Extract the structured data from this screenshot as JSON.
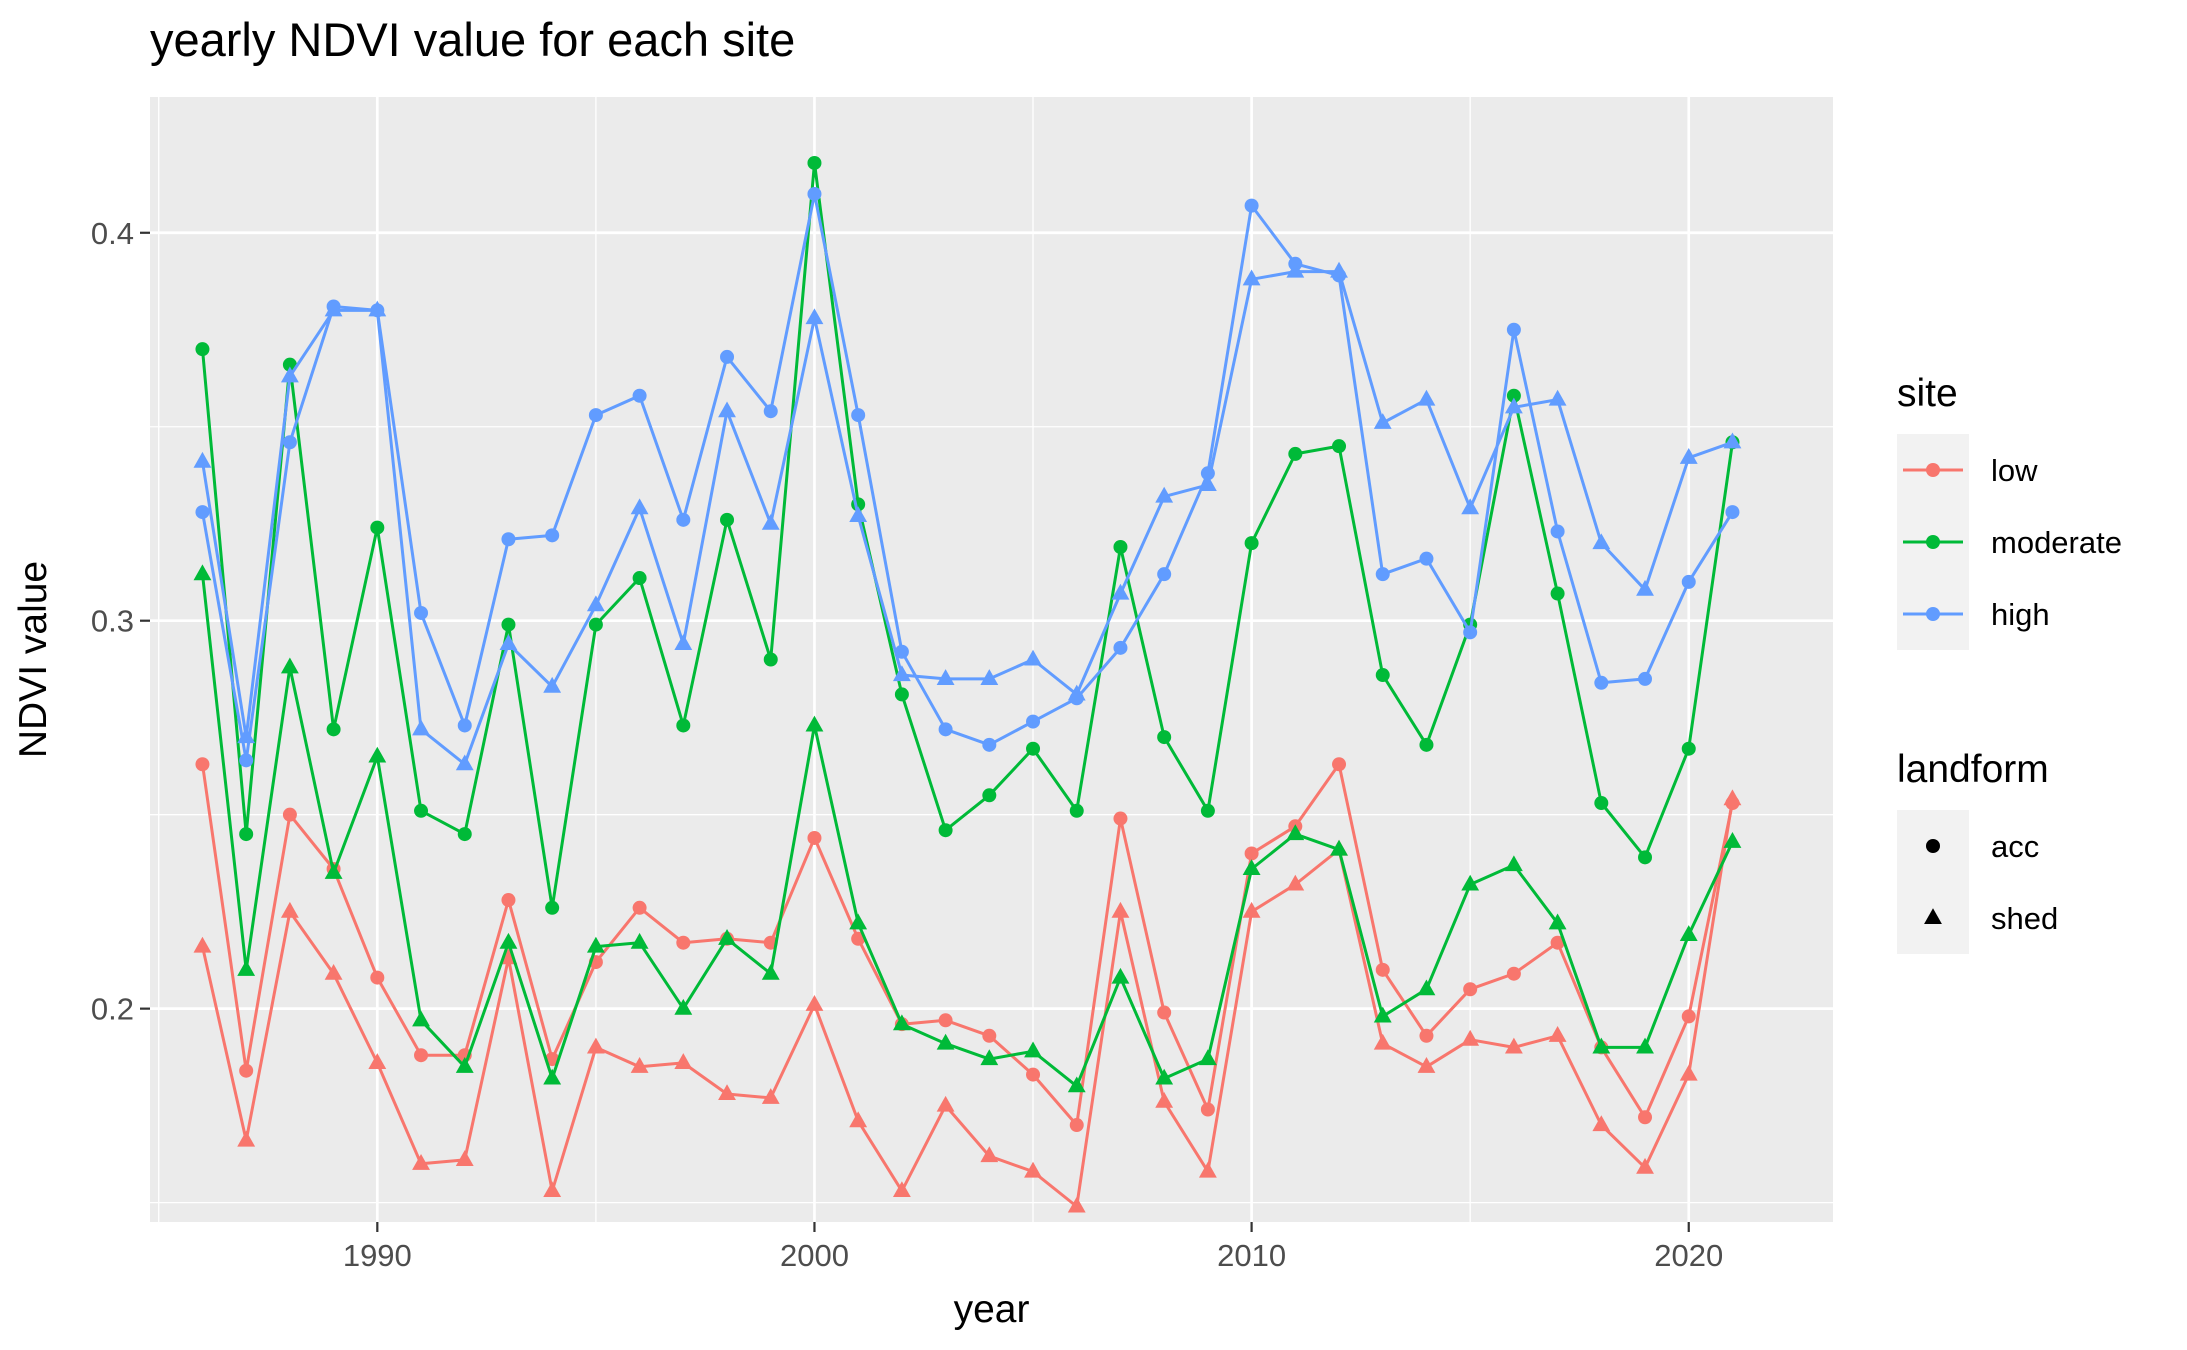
{
  "chart_data": {
    "type": "line",
    "title": "yearly NDVI value for each site",
    "xlabel": "year",
    "ylabel": "NDVI value",
    "xlim": [
      1984.8,
      2023.3
    ],
    "ylim": [
      0.145,
      0.435
    ],
    "x_ticks": [
      1990,
      2000,
      2010,
      2020
    ],
    "y_ticks": [
      0.2,
      0.3,
      0.4
    ],
    "grid": true,
    "legend_position": "right",
    "legends": [
      {
        "title": "site",
        "entries": [
          {
            "label": "low",
            "color": "#F8766D"
          },
          {
            "label": "moderate",
            "color": "#00BA38"
          },
          {
            "label": "high",
            "color": "#619CFF"
          }
        ]
      },
      {
        "title": "landform",
        "entries": [
          {
            "label": "acc",
            "shape": "circle"
          },
          {
            "label": "shed",
            "shape": "triangle"
          }
        ]
      }
    ],
    "x": [
      1986,
      1987,
      1988,
      1989,
      1990,
      1991,
      1992,
      1993,
      1994,
      1995,
      1996,
      1997,
      1998,
      1999,
      2000,
      2001,
      2002,
      2003,
      2004,
      2005,
      2006,
      2007,
      2008,
      2009,
      2010,
      2011,
      2012,
      2013,
      2014,
      2015,
      2016,
      2017,
      2018,
      2019,
      2020,
      2021
    ],
    "series": [
      {
        "site": "low",
        "landform": "acc",
        "color": "#F8766D",
        "shape": "circle",
        "values": [
          0.263,
          0.184,
          0.25,
          0.236,
          0.208,
          0.188,
          0.188,
          0.228,
          0.187,
          0.212,
          0.226,
          0.217,
          0.218,
          0.217,
          0.244,
          0.218,
          0.196,
          0.197,
          0.193,
          0.183,
          0.17,
          0.249,
          0.199,
          0.174,
          0.24,
          0.247,
          0.263,
          0.21,
          0.193,
          0.205,
          0.209,
          0.217,
          0.19,
          0.172,
          0.198,
          0.253
        ]
      },
      {
        "site": "low",
        "landform": "shed",
        "color": "#F8766D",
        "shape": "triangle",
        "values": [
          0.216,
          0.166,
          0.225,
          0.209,
          0.186,
          0.16,
          0.161,
          0.213,
          0.153,
          0.19,
          0.185,
          0.186,
          0.178,
          0.177,
          0.201,
          0.171,
          0.153,
          0.175,
          0.162,
          0.158,
          0.149,
          0.225,
          0.176,
          0.158,
          0.225,
          0.232,
          0.241,
          0.191,
          0.185,
          0.192,
          0.19,
          0.193,
          0.17,
          0.159,
          0.183,
          0.254
        ]
      },
      {
        "site": "moderate",
        "landform": "acc",
        "color": "#00BA38",
        "shape": "circle",
        "values": [
          0.37,
          0.245,
          0.366,
          0.272,
          0.324,
          0.251,
          0.245,
          0.299,
          0.226,
          0.299,
          0.311,
          0.273,
          0.326,
          0.29,
          0.418,
          0.33,
          0.281,
          0.246,
          0.255,
          0.267,
          0.251,
          0.319,
          0.27,
          0.251,
          0.32,
          0.343,
          0.345,
          0.286,
          0.268,
          0.299,
          0.358,
          0.307,
          0.253,
          0.239,
          0.267,
          0.346
        ]
      },
      {
        "site": "moderate",
        "landform": "shed",
        "color": "#00BA38",
        "shape": "triangle",
        "values": [
          0.312,
          0.21,
          0.288,
          0.235,
          0.265,
          0.197,
          0.185,
          0.217,
          0.182,
          0.216,
          0.217,
          0.2,
          0.218,
          0.209,
          0.273,
          0.222,
          0.196,
          0.191,
          0.187,
          0.189,
          0.18,
          0.208,
          0.182,
          0.187,
          0.236,
          0.245,
          0.241,
          0.198,
          0.205,
          0.232,
          0.237,
          0.222,
          0.19,
          0.19,
          0.219,
          0.243
        ]
      },
      {
        "site": "high",
        "landform": "acc",
        "color": "#619CFF",
        "shape": "circle",
        "values": [
          0.328,
          0.264,
          0.346,
          0.381,
          0.38,
          0.302,
          0.273,
          0.321,
          0.322,
          0.353,
          0.358,
          0.326,
          0.368,
          0.354,
          0.41,
          0.353,
          0.292,
          0.272,
          0.268,
          0.274,
          0.28,
          0.293,
          0.312,
          0.338,
          0.407,
          0.392,
          0.389,
          0.312,
          0.316,
          0.297,
          0.375,
          0.323,
          0.284,
          0.285,
          0.31,
          0.328
        ]
      },
      {
        "site": "high",
        "landform": "shed",
        "color": "#619CFF",
        "shape": "triangle",
        "values": [
          0.341,
          0.27,
          0.363,
          0.38,
          0.38,
          0.272,
          0.263,
          0.294,
          0.283,
          0.304,
          0.329,
          0.294,
          0.354,
          0.325,
          0.378,
          0.327,
          0.286,
          0.285,
          0.285,
          0.29,
          0.281,
          0.307,
          0.332,
          0.335,
          0.388,
          0.39,
          0.39,
          0.351,
          0.357,
          0.329,
          0.355,
          0.357,
          0.32,
          0.308,
          0.342,
          0.346
        ]
      }
    ]
  }
}
